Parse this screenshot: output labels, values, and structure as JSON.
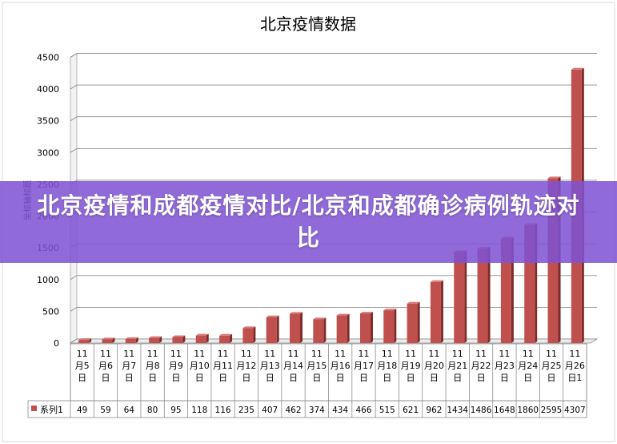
{
  "banner": {
    "text": "北京疫情和成都疫情对比/北京和成都确诊病例轨迹对比"
  },
  "chart_data": {
    "type": "bar",
    "title": "北京疫情数据",
    "ylabel": "坐标轴标题",
    "xlabel": "",
    "ylim": [
      0,
      4500
    ],
    "yticks": [
      0,
      500,
      1000,
      1500,
      2000,
      2500,
      3000,
      3500,
      4000,
      4500
    ],
    "grid": true,
    "legend": "data-table",
    "categories": [
      "11月5日",
      "11月6日",
      "11月7日",
      "11月8日",
      "11月9日",
      "11月10日",
      "11月11日",
      "11月12日",
      "11月13日",
      "11月14日",
      "11月15日",
      "11月16日",
      "11月17日",
      "11月18日",
      "11月19日",
      "11月20日",
      "11月21日",
      "11月22日",
      "11月23日",
      "11月24日",
      "11月25日",
      "11月26日1"
    ],
    "series": [
      {
        "name": "系列1",
        "values": [
          49,
          59,
          64,
          80,
          95,
          118,
          116,
          235,
          407,
          462,
          374,
          434,
          466,
          515,
          621,
          962,
          1434,
          1486,
          1648,
          1860,
          2595,
          4307
        ],
        "color": "#c0504d"
      }
    ]
  }
}
